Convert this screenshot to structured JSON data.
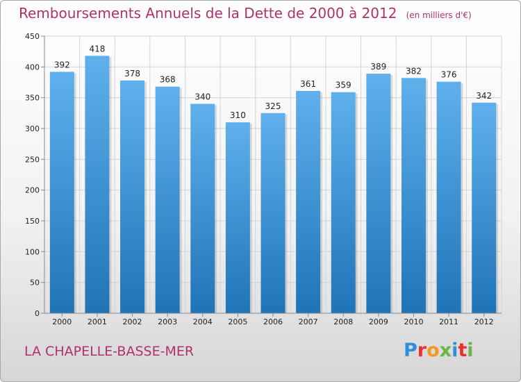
{
  "header": {
    "title": "Remboursements Annuels de la Dette de 2000 à 2012",
    "unit": "(en milliers d'€)"
  },
  "footer": {
    "city": "LA CHAPELLE-BASSE-MER",
    "logo": "Proxiti"
  },
  "colors": {
    "bar_top": "#5fb0ec",
    "bar_bottom": "#1f74b8",
    "title": "#b0306a"
  },
  "chart_data": {
    "type": "bar",
    "title": "Remboursements Annuels de la Dette de 2000 à 2012",
    "xlabel": "",
    "ylabel": "",
    "categories": [
      "2000",
      "2001",
      "2002",
      "2003",
      "2004",
      "2005",
      "2006",
      "2007",
      "2008",
      "2009",
      "2010",
      "2011",
      "2012"
    ],
    "values": [
      392,
      418,
      378,
      368,
      340,
      310,
      325,
      361,
      359,
      389,
      382,
      376,
      342
    ],
    "ylim": [
      0,
      450
    ],
    "yticks": [
      0,
      50,
      100,
      150,
      200,
      250,
      300,
      350,
      400,
      450
    ],
    "grid": true,
    "legend": "none"
  }
}
